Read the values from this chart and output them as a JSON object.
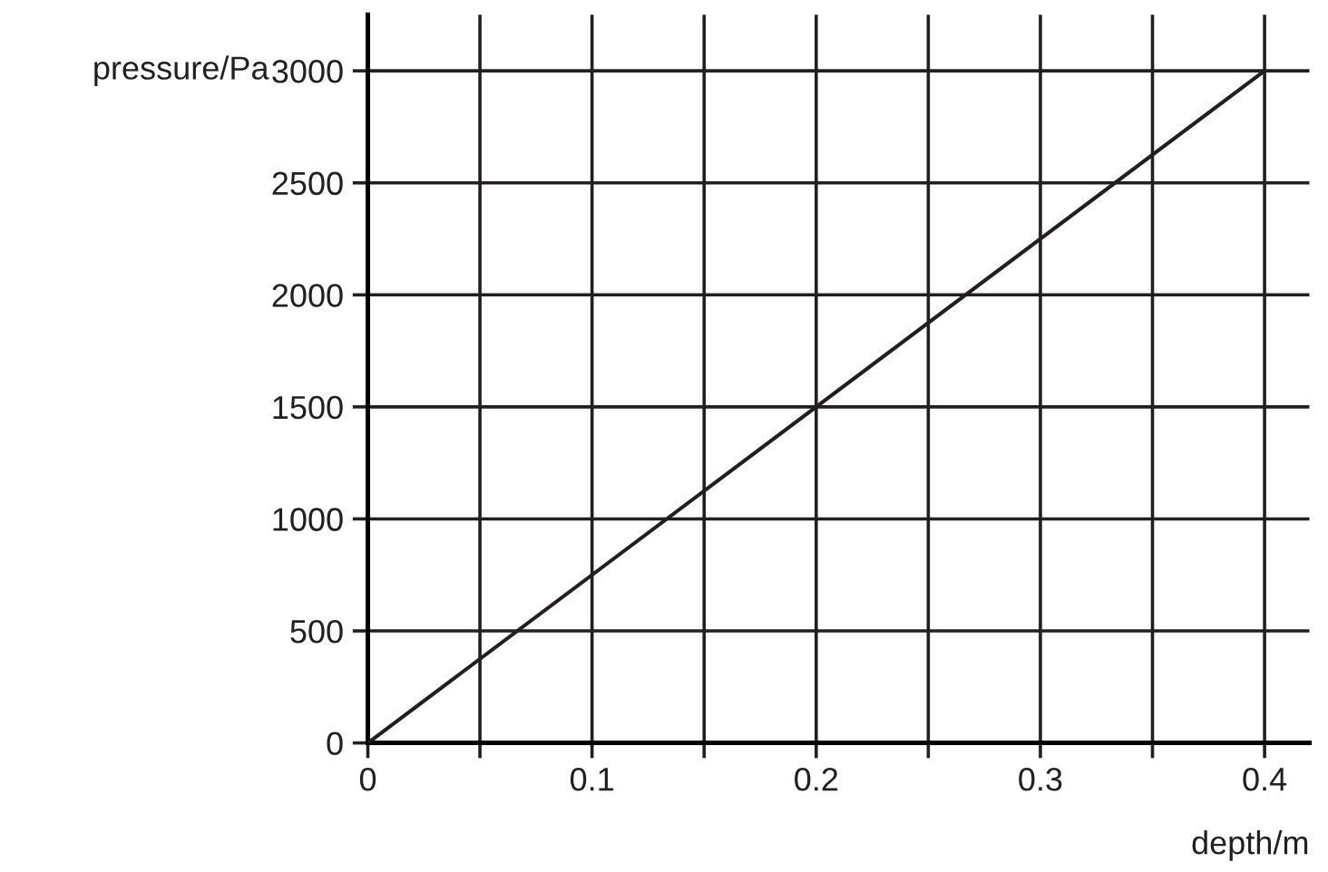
{
  "chart_data": {
    "type": "line",
    "xlabel": "depth/m",
    "ylabel": "pressure/Pa",
    "x": [
      0,
      0.4
    ],
    "series": [
      {
        "color": "#231f20",
        "values": [
          0,
          3000
        ]
      }
    ],
    "xlim": [
      0,
      0.42
    ],
    "ylim": [
      0,
      3250
    ],
    "xticks": [
      0,
      {
        "value": 0.05,
        "label": null
      },
      0.1,
      {
        "value": 0.15,
        "label": null
      },
      0.2,
      {
        "value": 0.25,
        "label": null
      },
      0.3,
      {
        "value": 0.35,
        "label": null
      },
      0.4
    ],
    "yticks": [
      0,
      500,
      1000,
      1500,
      2000,
      2500,
      3000
    ],
    "grid": true,
    "marker": "none",
    "line_style": "solid"
  }
}
